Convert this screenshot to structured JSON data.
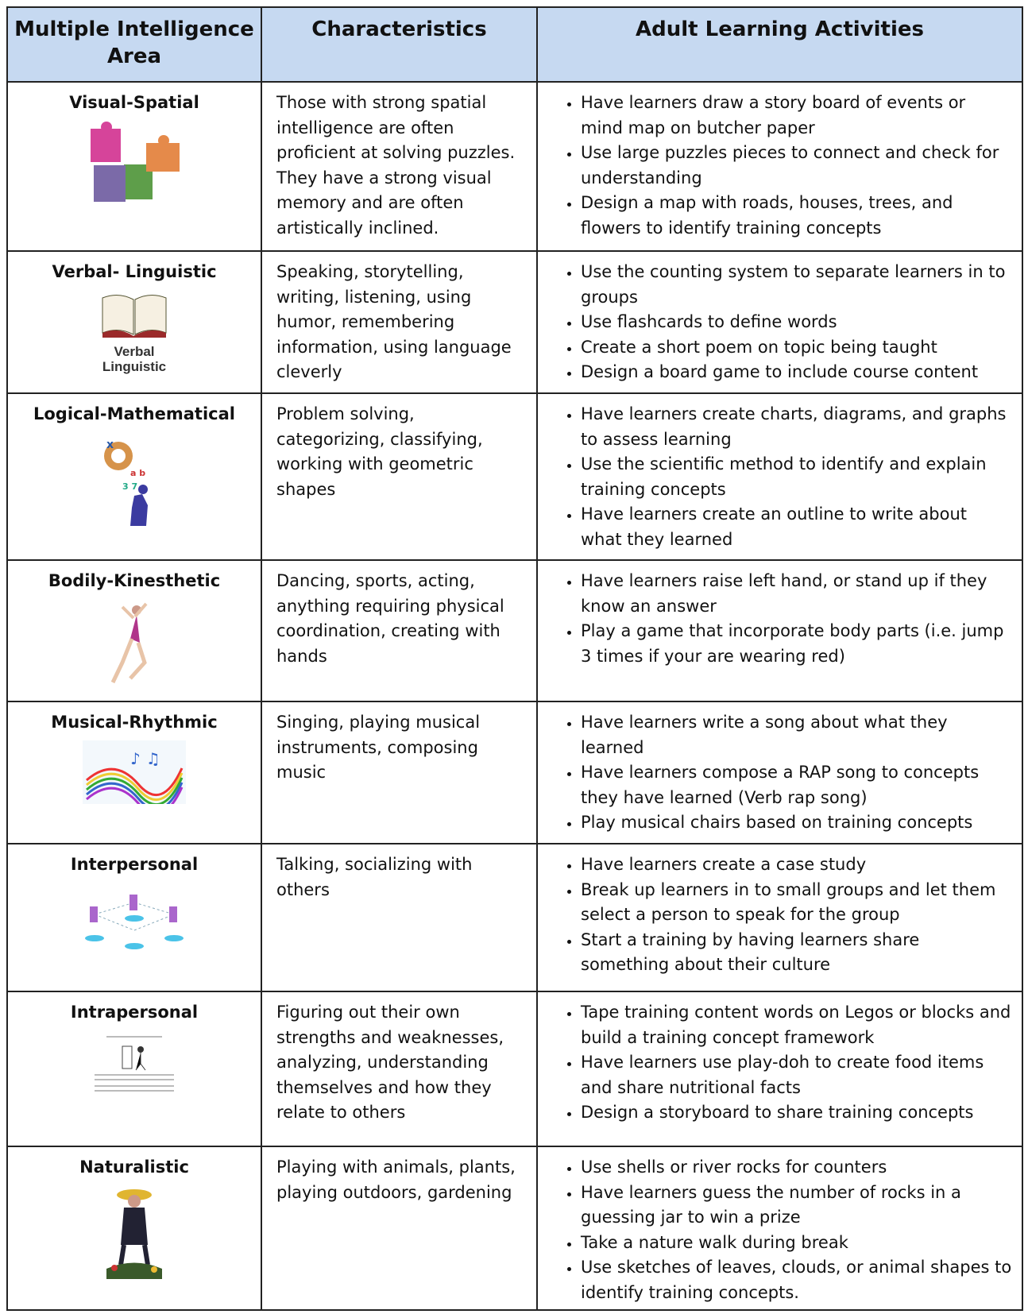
{
  "table": {
    "headers": [
      "Multiple Intelligence Area",
      "Characteristics",
      "Adult Learning Activities"
    ],
    "rows": [
      {
        "area": "Visual-Spatial",
        "characteristics": "Those with strong spatial intelligence are often proficient at solving puzzles. They have a strong visual memory and are often artistically inclined.",
        "activities": [
          "Have learners draw a story board of events or mind map on butcher paper",
          "Use large puzzles pieces to connect and check for understanding",
          "Design a map with roads, houses, trees, and flowers to identify training concepts"
        ]
      },
      {
        "area": "Verbal- Linguistic",
        "image_caption": "Verbal Linguistic",
        "characteristics": "Speaking, storytelling, writing, listening, using humor, remembering information, using language cleverly",
        "activities": [
          "Use the counting system to separate learners in to groups",
          "Use flashcards to define words",
          "Create a short poem on topic being taught",
          "Design a board game to include course content"
        ]
      },
      {
        "area": "Logical-Mathematical",
        "characteristics": "Problem solving, categorizing, classifying, working with geometric shapes",
        "activities": [
          "Have learners create charts, diagrams, and graphs to assess learning",
          "Use the scientific method to identify and explain training concepts",
          "Have learners create an outline to write about what they learned"
        ]
      },
      {
        "area": "Bodily-Kinesthetic",
        "characteristics": "Dancing, sports, acting, anything requiring physical coordination, creating with hands",
        "activities": [
          "Have learners raise left hand, or stand up if they know an answer",
          "Play a game that incorporate body parts (i.e. jump 3 times if your are wearing red)"
        ]
      },
      {
        "area": "Musical-Rhythmic",
        "characteristics": "Singing, playing musical instruments, composing music",
        "activities": [
          "Have learners write a song about what they learned",
          "Have learners compose a RAP song to concepts they have learned (Verb rap song)",
          "Play musical chairs based on training concepts"
        ]
      },
      {
        "area": "Interpersonal",
        "characteristics": "Talking, socializing with others",
        "activities": [
          "Have learners create a case study",
          "Break up learners in to small groups and let them select a person to speak for the group",
          "Start a training by having learners share something about their culture"
        ]
      },
      {
        "area": "Intrapersonal",
        "characteristics": "Figuring out their own strengths and weaknesses, analyzing, understanding themselves and how they relate to others",
        "activities": [
          "Tape training content words on Legos or blocks and build a training concept framework",
          "Have learners use play-doh to create food items and share nutritional facts",
          "Design a storyboard to share training concepts"
        ]
      },
      {
        "area": "Naturalistic",
        "characteristics": "Playing with animals, plants, playing outdoors, gardening",
        "activities": [
          "Use shells or river rocks for counters",
          "Have learners guess the number of rocks in a guessing jar to win a prize",
          "Take a nature walk during break",
          "Use sketches of leaves, clouds, or animal shapes to identify training concepts."
        ]
      }
    ]
  }
}
